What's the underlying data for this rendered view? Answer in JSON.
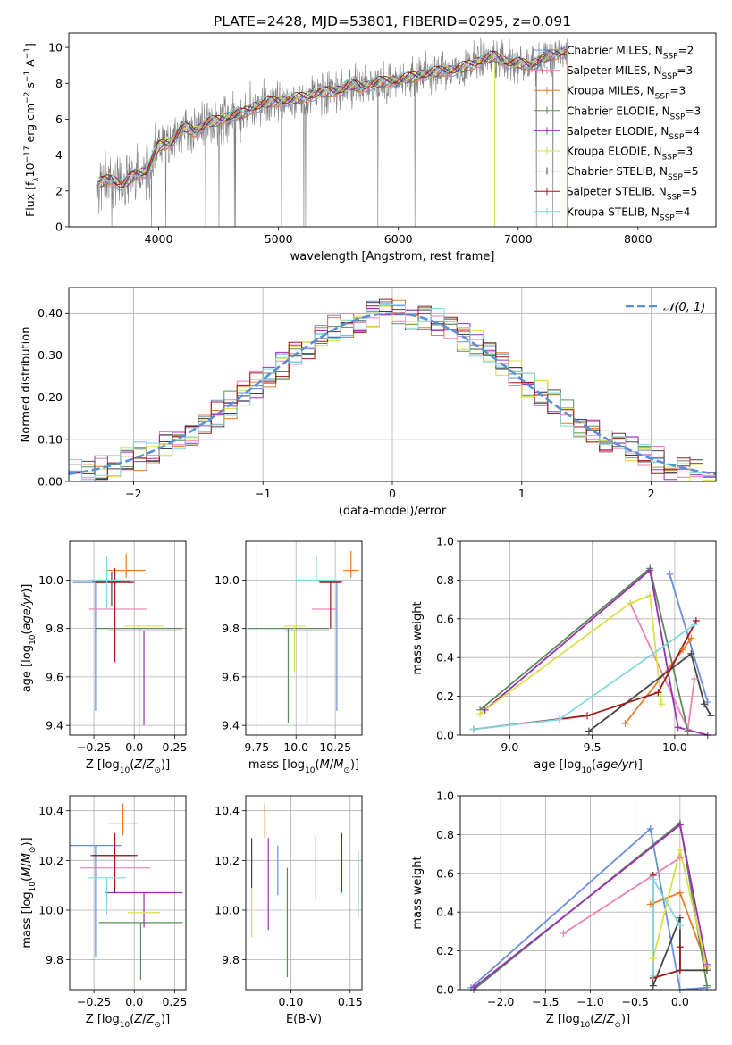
{
  "chart_data": [
    {
      "id": "spectrum",
      "type": "line",
      "title": "PLATE=2428, MJD=53801, FIBERID=0295, z=0.091",
      "xlabel": "wavelength [Angstrom, rest frame]",
      "ylabel": "Flux [f_λ10^-17 erg cm^-2 s^-1 A^-1]",
      "xlim": [
        3250,
        8650
      ],
      "ylim": [
        0,
        10.8
      ],
      "xticks": [
        4000,
        5000,
        6000,
        7000,
        8000
      ],
      "yticks": [
        0,
        2,
        4,
        6,
        8,
        10
      ],
      "grid": false,
      "legend_position": "top-right",
      "data_trend": {
        "x": [
          3500,
          3600,
          3700,
          3800,
          3900,
          4000,
          4100,
          4200,
          4300,
          4400,
          4500,
          4600,
          4700,
          4800,
          4900,
          5000,
          5100,
          5200,
          5300,
          5400,
          5500,
          5600,
          5700,
          5800,
          5900,
          6000,
          6100,
          6200,
          6300,
          6400,
          6500,
          6600,
          6700,
          6800,
          6900,
          7000,
          7100,
          7200,
          7300,
          7400
        ],
        "y": [
          2.4,
          2.7,
          2.3,
          2.9,
          3.1,
          4.5,
          4.7,
          5.6,
          5.3,
          5.8,
          5.9,
          6.2,
          6.3,
          6.7,
          6.9,
          7.0,
          7.1,
          7.2,
          7.4,
          7.5,
          7.6,
          7.9,
          7.8,
          8.0,
          8.1,
          8.2,
          8.3,
          8.5,
          8.6,
          8.7,
          8.8,
          9.0,
          9.3,
          9.5,
          9.2,
          9.1,
          9.0,
          9.4,
          9.6,
          9.8
        ]
      },
      "legend": [
        {
          "name": "Chabrier MILES, N",
          "sub": "SSP",
          "suffix": "=2",
          "color": "#6a8fd8"
        },
        {
          "name": "Salpeter MILES, N",
          "sub": "SSP",
          "suffix": "=3",
          "color": "#e882b2"
        },
        {
          "name": "Kroupa MILES, N",
          "sub": "SSP",
          "suffix": "=3",
          "color": "#e57d26"
        },
        {
          "name": "Chabrier ELODIE, N",
          "sub": "SSP",
          "suffix": "=3",
          "color": "#5a8a5a"
        },
        {
          "name": "Salpeter ELODIE, N",
          "sub": "SSP",
          "suffix": "=4",
          "color": "#9a30b0"
        },
        {
          "name": "Kroupa ELODIE, N",
          "sub": "SSP",
          "suffix": "=3",
          "color": "#d9e04a"
        },
        {
          "name": "Chabrier STELIB, N",
          "sub": "SSP",
          "suffix": "=5",
          "color": "#444444"
        },
        {
          "name": "Salpeter STELIB, N",
          "sub": "SSP",
          "suffix": "=5",
          "color": "#a01818"
        },
        {
          "name": "Kroupa STELIB, N",
          "sub": "SSP",
          "suffix": "=4",
          "color": "#80d8e0"
        }
      ]
    },
    {
      "id": "residual_hist",
      "type": "bar",
      "xlabel": "(data-model)/error",
      "ylabel": "Normed distribution",
      "xlim": [
        -2.5,
        2.5
      ],
      "ylim": [
        0,
        0.46
      ],
      "xticks": [
        -2,
        -1,
        0,
        1,
        2
      ],
      "yticks": [
        0.0,
        0.1,
        0.2,
        0.3,
        0.4
      ],
      "grid": true,
      "bin_width": 0.1,
      "legend_label": "𝒩(0, 1)",
      "legend_position": "top-right",
      "reference_curve": "gaussian mean 0 sigma 1",
      "histogram_approx": {
        "x": [
          -2.45,
          -2.25,
          -2.05,
          -1.85,
          -1.65,
          -1.45,
          -1.25,
          -1.05,
          -0.85,
          -0.65,
          -0.45,
          -0.25,
          -0.05,
          0.15,
          0.35,
          0.55,
          0.75,
          0.95,
          1.15,
          1.35,
          1.55,
          1.75,
          1.95,
          2.15,
          2.35
        ],
        "values": [
          0.04,
          0.05,
          0.07,
          0.09,
          0.13,
          0.16,
          0.2,
          0.27,
          0.31,
          0.32,
          0.36,
          0.39,
          0.4,
          0.38,
          0.37,
          0.33,
          0.3,
          0.26,
          0.19,
          0.14,
          0.11,
          0.08,
          0.06,
          0.04,
          0.03
        ]
      }
    },
    {
      "id": "age_vs_Z",
      "type": "scatter",
      "xlabel": "Z [log₁₀(Z/Z⊙)]",
      "ylabel": "age  [log₁₀(age/yr)]",
      "xlim": [
        -0.4,
        0.32
      ],
      "ylim": [
        9.36,
        10.16
      ],
      "xticks": [
        -0.25,
        0.0,
        0.25
      ],
      "yticks": [
        9.4,
        9.6,
        9.8,
        10.0
      ],
      "grid": true,
      "points": [
        {
          "x": -0.24,
          "xerr": 0.14,
          "y": 9.99,
          "yerr_lo": 0.53,
          "yerr_hi": 0.0,
          "color": "#6a8fd8"
        },
        {
          "x": -0.1,
          "xerr": 0.18,
          "y": 9.88,
          "yerr_lo": 0.0,
          "yerr_hi": 0.0,
          "color": "#e882b2"
        },
        {
          "x": -0.05,
          "xerr": 0.12,
          "y": 10.04,
          "yerr_lo": 0.03,
          "yerr_hi": 0.07,
          "color": "#e57d26"
        },
        {
          "x": 0.03,
          "xerr": 0.27,
          "y": 9.8,
          "yerr_lo": 0.6,
          "yerr_hi": 0.0,
          "color": "#5a8a5a"
        },
        {
          "x": 0.06,
          "xerr": 0.22,
          "y": 9.79,
          "yerr_lo": 0.39,
          "yerr_hi": 0.0,
          "color": "#9a30b0"
        },
        {
          "x": 0.06,
          "xerr": 0.12,
          "y": 9.81,
          "yerr_lo": 0.0,
          "yerr_hi": 0.0,
          "color": "#d9e04a"
        },
        {
          "x": -0.14,
          "xerr": 0.12,
          "y": 9.995,
          "yerr_lo": 0.1,
          "yerr_hi": 0.04,
          "color": "#444444"
        },
        {
          "x": -0.12,
          "xerr": 0.12,
          "y": 9.99,
          "yerr_lo": 0.33,
          "yerr_hi": 0.06,
          "color": "#a01818"
        },
        {
          "x": -0.17,
          "xerr": 0.1,
          "y": 10.0,
          "yerr_lo": 0.12,
          "yerr_hi": 0.1,
          "color": "#80d8e0"
        }
      ]
    },
    {
      "id": "age_vs_mass",
      "type": "scatter",
      "xlabel": "mass [log₁₀(M/M⊙)]",
      "ylabel": "",
      "xlim": [
        9.68,
        10.42
      ],
      "ylim": [
        9.36,
        10.16
      ],
      "xticks": [
        9.75,
        10.0,
        10.25
      ],
      "yticks": [
        9.4,
        9.6,
        9.8,
        10.0
      ],
      "grid": true,
      "points": [
        {
          "x": 10.26,
          "xerr": 0.0,
          "y": 9.99,
          "yerr_lo": 0.53,
          "yerr_hi": 0.0,
          "color": "#6a8fd8"
        },
        {
          "x": 10.18,
          "xerr": 0.08,
          "y": 9.88,
          "yerr_lo": 0.0,
          "yerr_hi": 0.0,
          "color": "#e882b2"
        },
        {
          "x": 10.35,
          "xerr": 0.05,
          "y": 10.04,
          "yerr_lo": 0.03,
          "yerr_hi": 0.08,
          "color": "#e57d26"
        },
        {
          "x": 9.95,
          "xerr": 0.26,
          "y": 9.8,
          "yerr_lo": 0.39,
          "yerr_hi": 0.0,
          "color": "#5a8a5a"
        },
        {
          "x": 10.07,
          "xerr": 0.14,
          "y": 9.79,
          "yerr_lo": 0.39,
          "yerr_hi": 0.0,
          "color": "#9a30b0"
        },
        {
          "x": 9.99,
          "xerr": 0.07,
          "y": 9.81,
          "yerr_lo": 0.19,
          "yerr_hi": 0.0,
          "color": "#d9e04a"
        },
        {
          "x": 10.22,
          "xerr": 0.08,
          "y": 9.995,
          "yerr_lo": 0.0,
          "yerr_hi": 0.0,
          "color": "#444444"
        },
        {
          "x": 10.22,
          "xerr": 0.07,
          "y": 9.99,
          "yerr_lo": 0.19,
          "yerr_hi": 0.0,
          "color": "#a01818"
        },
        {
          "x": 10.13,
          "xerr": 0.13,
          "y": 10.0,
          "yerr_lo": 0.0,
          "yerr_hi": 0.1,
          "color": "#80d8e0"
        }
      ]
    },
    {
      "id": "weight_vs_age",
      "type": "line",
      "xlabel": "age  [log₁₀(age/yr)]",
      "ylabel": "mass weight",
      "xlim": [
        8.7,
        10.25
      ],
      "ylim": [
        0,
        1.0
      ],
      "xticks": [
        9.0,
        9.5,
        10.0
      ],
      "yticks": [
        0.0,
        0.2,
        0.4,
        0.6,
        0.8,
        1.0
      ],
      "grid": true,
      "series": [
        {
          "color": "#6a8fd8",
          "x": [
            9.97,
            10.2
          ],
          "y": [
            0.83,
            0.17
          ]
        },
        {
          "color": "#e882b2",
          "x": [
            9.73,
            10.08,
            10.12
          ],
          "y": [
            0.68,
            0.03,
            0.29
          ]
        },
        {
          "color": "#e57d26",
          "x": [
            9.7,
            10.05,
            10.1
          ],
          "y": [
            0.06,
            0.44,
            0.5
          ]
        },
        {
          "color": "#5a8a5a",
          "x": [
            8.82,
            9.85,
            10.08
          ],
          "y": [
            0.13,
            0.86,
            0.02
          ]
        },
        {
          "color": "#9a30b0",
          "x": [
            8.85,
            9.85,
            10.02,
            10.2
          ],
          "y": [
            0.13,
            0.85,
            0.04,
            0.0
          ]
        },
        {
          "color": "#d9e04a",
          "x": [
            8.82,
            9.73,
            9.85,
            9.92
          ],
          "y": [
            0.11,
            0.68,
            0.72,
            0.16
          ]
        },
        {
          "color": "#444444",
          "x": [
            9.48,
            10.1,
            10.18,
            10.22
          ],
          "y": [
            0.02,
            0.42,
            0.16,
            0.1
          ]
        },
        {
          "color": "#a01818",
          "x": [
            8.78,
            9.47,
            9.9,
            10.13
          ],
          "y": [
            0.03,
            0.1,
            0.22,
            0.59
          ]
        },
        {
          "color": "#80d8e0",
          "x": [
            8.78,
            9.3,
            10.12
          ],
          "y": [
            0.03,
            0.08,
            0.57
          ]
        }
      ]
    },
    {
      "id": "mass_vs_Z",
      "type": "scatter",
      "xlabel": "Z [log₁₀(Z/Z⊙)]",
      "ylabel": "mass [log₁₀(M/M⊙)]",
      "xlim": [
        -0.4,
        0.32
      ],
      "ylim": [
        9.68,
        10.46
      ],
      "xticks": [
        -0.25,
        0.0,
        0.25
      ],
      "yticks": [
        9.8,
        10.0,
        10.2,
        10.4
      ],
      "grid": true,
      "points": [
        {
          "x": -0.24,
          "xerr": 0.16,
          "y": 10.26,
          "yerr_lo": 0.45,
          "yerr_hi": 0.0,
          "color": "#6a8fd8"
        },
        {
          "x": -0.12,
          "xerr": 0.22,
          "y": 10.17,
          "yerr_lo": 0.0,
          "yerr_hi": 0.0,
          "color": "#e882b2"
        },
        {
          "x": -0.07,
          "xerr": 0.09,
          "y": 10.35,
          "yerr_lo": 0.05,
          "yerr_hi": 0.08,
          "color": "#e57d26"
        },
        {
          "x": 0.04,
          "xerr": 0.26,
          "y": 9.95,
          "yerr_lo": 0.23,
          "yerr_hi": 0.0,
          "color": "#5a8a5a"
        },
        {
          "x": 0.06,
          "xerr": 0.24,
          "y": 10.07,
          "yerr_lo": 0.14,
          "yerr_hi": 0.0,
          "color": "#9a30b0"
        },
        {
          "x": 0.06,
          "xerr": 0.1,
          "y": 9.99,
          "yerr_lo": 0.0,
          "yerr_hi": 0.0,
          "color": "#d9e04a"
        },
        {
          "x": -0.14,
          "xerr": 0.13,
          "y": 10.22,
          "yerr_lo": 0.0,
          "yerr_hi": 0.0,
          "color": "#444444"
        },
        {
          "x": -0.12,
          "xerr": 0.14,
          "y": 10.22,
          "yerr_lo": 0.15,
          "yerr_hi": 0.09,
          "color": "#a01818"
        },
        {
          "x": -0.17,
          "xerr": 0.12,
          "y": 10.13,
          "yerr_lo": 0.15,
          "yerr_hi": 0.0,
          "color": "#80d8e0"
        }
      ]
    },
    {
      "id": "mass_vs_ebv",
      "type": "scatter",
      "xlabel": "E(B-V)",
      "ylabel": "",
      "xlim": [
        0.062,
        0.16
      ],
      "ylim": [
        9.68,
        10.46
      ],
      "xticks": [
        0.1,
        0.15
      ],
      "yticks": [
        9.8,
        10.0,
        10.2,
        10.4
      ],
      "grid": true,
      "points": [
        {
          "x": 0.089,
          "y": 10.21,
          "yerr_lo": 0.15,
          "yerr_hi": 0.05,
          "color": "#6a8fd8"
        },
        {
          "x": 0.121,
          "y": 10.17,
          "yerr_lo": 0.13,
          "yerr_hi": 0.13,
          "color": "#e882b2"
        },
        {
          "x": 0.078,
          "y": 10.33,
          "yerr_lo": 0.04,
          "yerr_hi": 0.1,
          "color": "#e57d26"
        },
        {
          "x": 0.097,
          "y": 9.95,
          "yerr_lo": 0.22,
          "yerr_hi": 0.22,
          "color": "#5a8a5a"
        },
        {
          "x": 0.081,
          "y": 10.08,
          "yerr_lo": 0.16,
          "yerr_hi": 0.21,
          "color": "#9a30b0"
        },
        {
          "x": 0.067,
          "y": 10.0,
          "yerr_lo": 0.11,
          "yerr_hi": 0.09,
          "color": "#d9e04a"
        },
        {
          "x": 0.067,
          "y": 10.19,
          "yerr_lo": 0.1,
          "yerr_hi": 0.1,
          "color": "#444444"
        },
        {
          "x": 0.143,
          "y": 10.19,
          "yerr_lo": 0.12,
          "yerr_hi": 0.12,
          "color": "#a01818"
        },
        {
          "x": 0.157,
          "y": 10.11,
          "yerr_lo": 0.14,
          "yerr_hi": 0.13,
          "color": "#80d8e0"
        }
      ]
    },
    {
      "id": "weight_vs_Z",
      "type": "line",
      "xlabel": "Z [log₁₀(Z/Z⊙)]",
      "ylabel": "mass weight",
      "xlim": [
        -2.45,
        0.4
      ],
      "ylim": [
        0,
        1.0
      ],
      "xticks": [
        -2.0,
        -1.5,
        -1.0,
        -0.5,
        0.0
      ],
      "yticks": [
        0.0,
        0.2,
        0.4,
        0.6,
        0.8,
        1.0
      ],
      "grid": true,
      "series": [
        {
          "color": "#6a8fd8",
          "x": [
            -2.33,
            -0.33,
            0.0,
            0.3
          ],
          "y": [
            0.01,
            0.83,
            0.0,
            0.01
          ]
        },
        {
          "color": "#e882b2",
          "x": [
            -1.3,
            0.0
          ],
          "y": [
            0.29,
            0.68
          ]
        },
        {
          "color": "#e57d26",
          "x": [
            -0.33,
            0.0,
            0.3
          ],
          "y": [
            0.44,
            0.5,
            0.12
          ]
        },
        {
          "color": "#5a8a5a",
          "x": [
            -2.3,
            0.0,
            0.3
          ],
          "y": [
            0.0,
            0.86,
            0.02
          ]
        },
        {
          "color": "#9a30b0",
          "x": [
            -2.3,
            0.0,
            0.3
          ],
          "y": [
            0.01,
            0.85,
            0.13
          ]
        },
        {
          "color": "#d9e04a",
          "x": [
            -0.3,
            0.0,
            0.3
          ],
          "y": [
            0.16,
            0.72,
            0.11
          ]
        },
        {
          "color": "#444444",
          "x": [
            -0.3,
            0.0,
            0.0,
            0.3
          ],
          "y": [
            0.02,
            0.37,
            0.1,
            0.1
          ]
        },
        {
          "color": "#a01818",
          "x": [
            -0.3,
            -0.3,
            0.0,
            0.0
          ],
          "y": [
            0.59,
            0.06,
            0.1,
            0.22
          ]
        },
        {
          "color": "#80d8e0",
          "x": [
            -0.3,
            -0.3,
            0.0
          ],
          "y": [
            0.07,
            0.57,
            0.33
          ]
        }
      ]
    }
  ]
}
